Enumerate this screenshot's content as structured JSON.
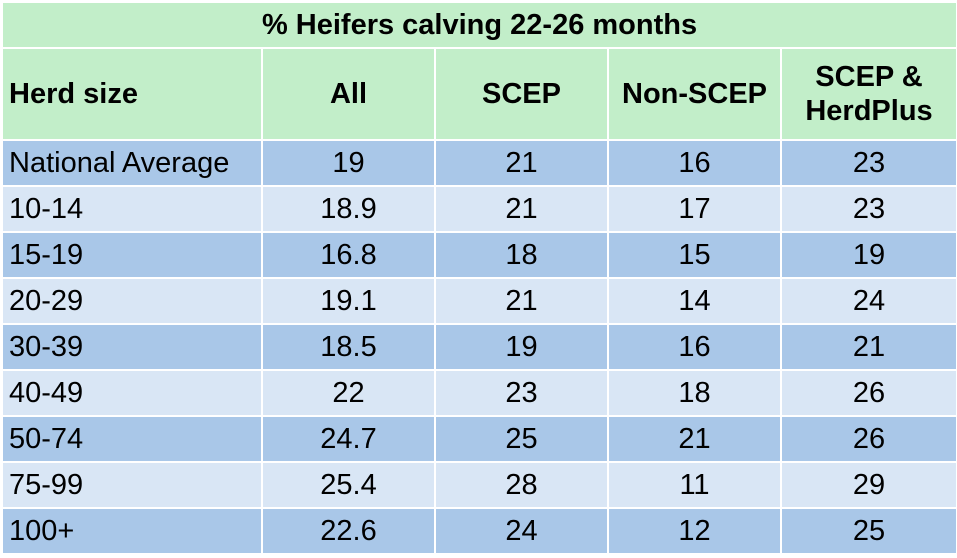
{
  "table": {
    "title": "% Heifers calving 22-26 months",
    "headers": [
      "Herd size",
      "All",
      "SCEP",
      "Non-SCEP",
      "SCEP & HerdPlus"
    ],
    "rows": [
      {
        "label": "National Average",
        "all": "19",
        "scep": "21",
        "non_scep": "16",
        "scep_herdplus": "23"
      },
      {
        "label": "10-14",
        "all": "18.9",
        "scep": "21",
        "non_scep": "17",
        "scep_herdplus": "23"
      },
      {
        "label": "15-19",
        "all": "16.8",
        "scep": "18",
        "non_scep": "15",
        "scep_herdplus": "19"
      },
      {
        "label": "20-29",
        "all": "19.1",
        "scep": "21",
        "non_scep": "14",
        "scep_herdplus": "24"
      },
      {
        "label": "30-39",
        "all": "18.5",
        "scep": "19",
        "non_scep": "16",
        "scep_herdplus": "21"
      },
      {
        "label": "40-49",
        "all": "22",
        "scep": "23",
        "non_scep": "18",
        "scep_herdplus": "26"
      },
      {
        "label": "50-74",
        "all": "24.7",
        "scep": "25",
        "non_scep": "21",
        "scep_herdplus": "26"
      },
      {
        "label": "75-99",
        "all": "25.4",
        "scep": "28",
        "non_scep": "11",
        "scep_herdplus": "29"
      },
      {
        "label": "100+",
        "all": "22.6",
        "scep": "24",
        "non_scep": "12",
        "scep_herdplus": "25"
      }
    ]
  },
  "colors": {
    "header_green": "#c2eec9",
    "row_dark_blue": "#a9c7e8",
    "row_light_blue": "#d9e6f5"
  }
}
